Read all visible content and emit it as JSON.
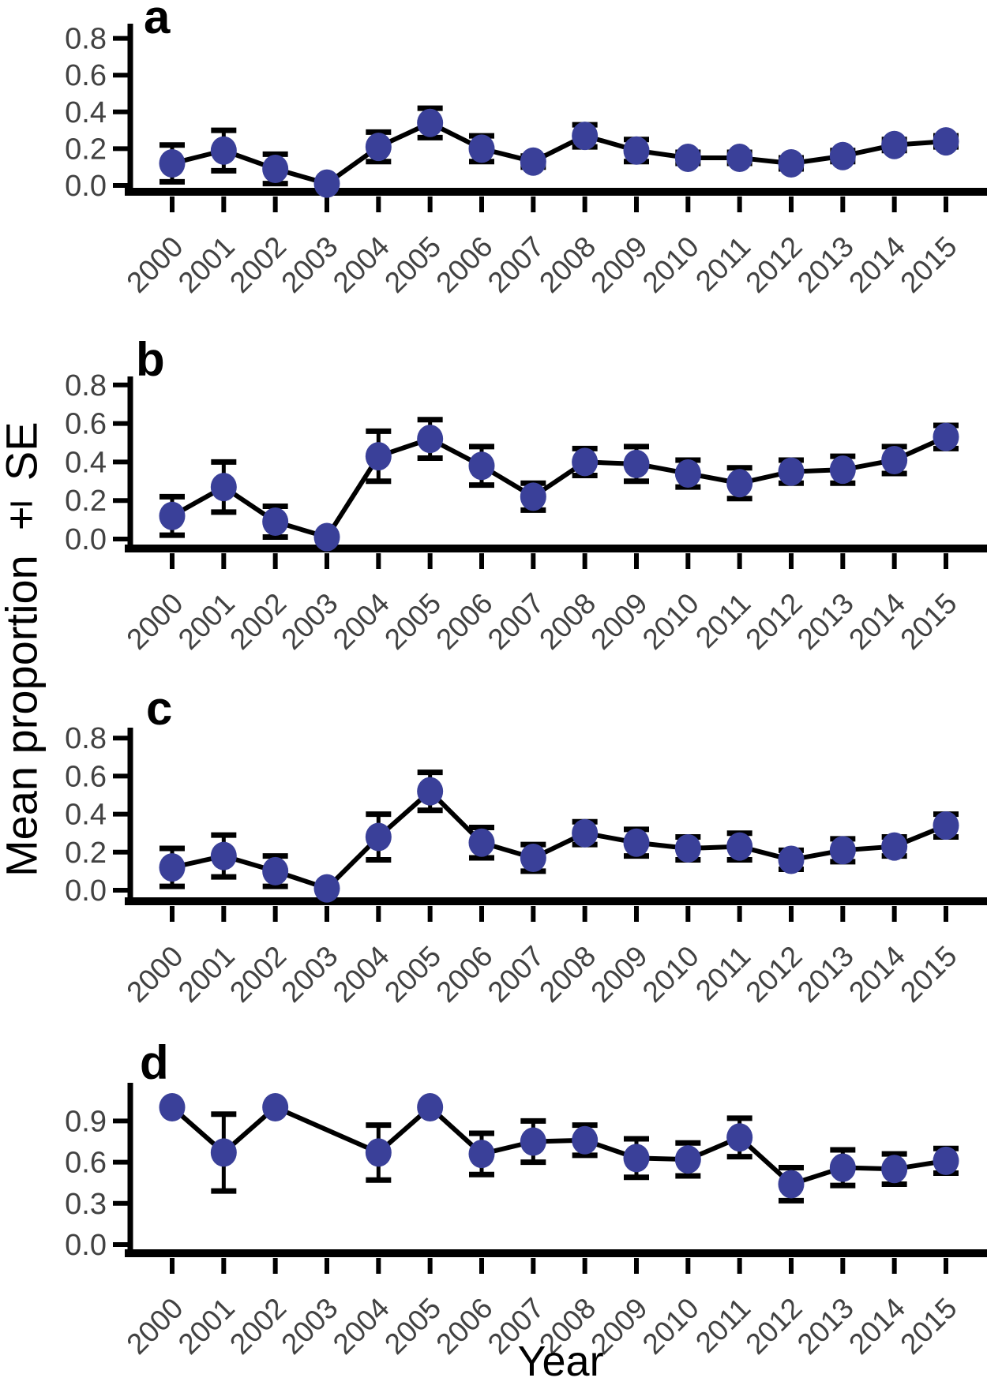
{
  "figure": {
    "y_axis_title": "Mean proportion ± SE",
    "x_axis_title": "Year",
    "colors": {
      "marker": "#3A4099",
      "line": "#000000",
      "axis": "#000000",
      "tick_label": "#424242"
    }
  },
  "chart_data": [
    {
      "type": "line",
      "panel": "a",
      "categories": [
        2000,
        2001,
        2002,
        2003,
        2004,
        2005,
        2006,
        2007,
        2008,
        2009,
        2010,
        2011,
        2012,
        2013,
        2014,
        2015
      ],
      "series": [
        {
          "name": "mean_proportion",
          "values": [
            0.12,
            0.19,
            0.09,
            0.01,
            0.21,
            0.34,
            0.2,
            0.13,
            0.27,
            0.19,
            0.15,
            0.15,
            0.12,
            0.16,
            0.22,
            0.24
          ]
        },
        {
          "name": "se",
          "values": [
            0.1,
            0.11,
            0.08,
            0.01,
            0.08,
            0.08,
            0.07,
            0.03,
            0.06,
            0.06,
            0.03,
            0.03,
            0.03,
            0.03,
            0.03,
            0.03
          ]
        }
      ],
      "ylabel": "Mean proportion ± SE",
      "xlabel": "Year",
      "yticks": [
        0.0,
        0.2,
        0.4,
        0.6,
        0.8
      ],
      "ylim": [
        0,
        0.88
      ],
      "grid": false,
      "legend": false
    },
    {
      "type": "line",
      "panel": "b",
      "categories": [
        2000,
        2001,
        2002,
        2003,
        2004,
        2005,
        2006,
        2007,
        2008,
        2009,
        2010,
        2011,
        2012,
        2013,
        2014,
        2015
      ],
      "series": [
        {
          "name": "mean_proportion",
          "values": [
            0.12,
            0.27,
            0.09,
            0.01,
            0.43,
            0.52,
            0.38,
            0.22,
            0.4,
            0.39,
            0.34,
            0.29,
            0.35,
            0.36,
            0.41,
            0.53
          ]
        },
        {
          "name": "se",
          "values": [
            0.1,
            0.13,
            0.08,
            0.01,
            0.13,
            0.1,
            0.1,
            0.07,
            0.07,
            0.09,
            0.07,
            0.08,
            0.06,
            0.07,
            0.07,
            0.06
          ]
        }
      ],
      "ylabel": "Mean proportion ± SE",
      "xlabel": "Year",
      "yticks": [
        0.0,
        0.2,
        0.4,
        0.6,
        0.8
      ],
      "ylim": [
        0,
        0.85
      ],
      "grid": false,
      "legend": false
    },
    {
      "type": "line",
      "panel": "c",
      "categories": [
        2000,
        2001,
        2002,
        2003,
        2004,
        2005,
        2006,
        2007,
        2008,
        2009,
        2010,
        2011,
        2012,
        2013,
        2014,
        2015
      ],
      "series": [
        {
          "name": "mean_proportion",
          "values": [
            0.12,
            0.18,
            0.1,
            0.01,
            0.28,
            0.52,
            0.25,
            0.17,
            0.3,
            0.25,
            0.22,
            0.23,
            0.16,
            0.21,
            0.23,
            0.34
          ]
        },
        {
          "name": "se",
          "values": [
            0.1,
            0.11,
            0.08,
            0.01,
            0.12,
            0.1,
            0.08,
            0.07,
            0.06,
            0.07,
            0.06,
            0.07,
            0.05,
            0.06,
            0.05,
            0.06
          ]
        }
      ],
      "ylabel": "Mean proportion ± SE",
      "xlabel": "Year",
      "yticks": [
        0.0,
        0.2,
        0.4,
        0.6,
        0.8
      ],
      "ylim": [
        0,
        0.855
      ],
      "grid": false,
      "legend": false
    },
    {
      "type": "line",
      "panel": "d",
      "categories": [
        2000,
        2001,
        2002,
        2003,
        2004,
        2005,
        2006,
        2007,
        2008,
        2009,
        2010,
        2011,
        2012,
        2013,
        2014,
        2015
      ],
      "series": [
        {
          "name": "mean_proportion",
          "values": [
            1.0,
            0.67,
            1.0,
            null,
            0.67,
            1.0,
            0.66,
            0.75,
            0.76,
            0.63,
            0.62,
            0.78,
            0.44,
            0.56,
            0.55,
            0.61
          ]
        },
        {
          "name": "se",
          "values": [
            0,
            0.28,
            0,
            null,
            0.2,
            0,
            0.15,
            0.15,
            0.11,
            0.14,
            0.12,
            0.14,
            0.12,
            0.13,
            0.11,
            0.09
          ]
        }
      ],
      "ylabel": "Mean proportion ± SE",
      "xlabel": "Year",
      "yticks": [
        0.0,
        0.3,
        0.6,
        0.9
      ],
      "ylim": [
        0,
        1.18
      ],
      "grid": false,
      "legend": false
    }
  ]
}
